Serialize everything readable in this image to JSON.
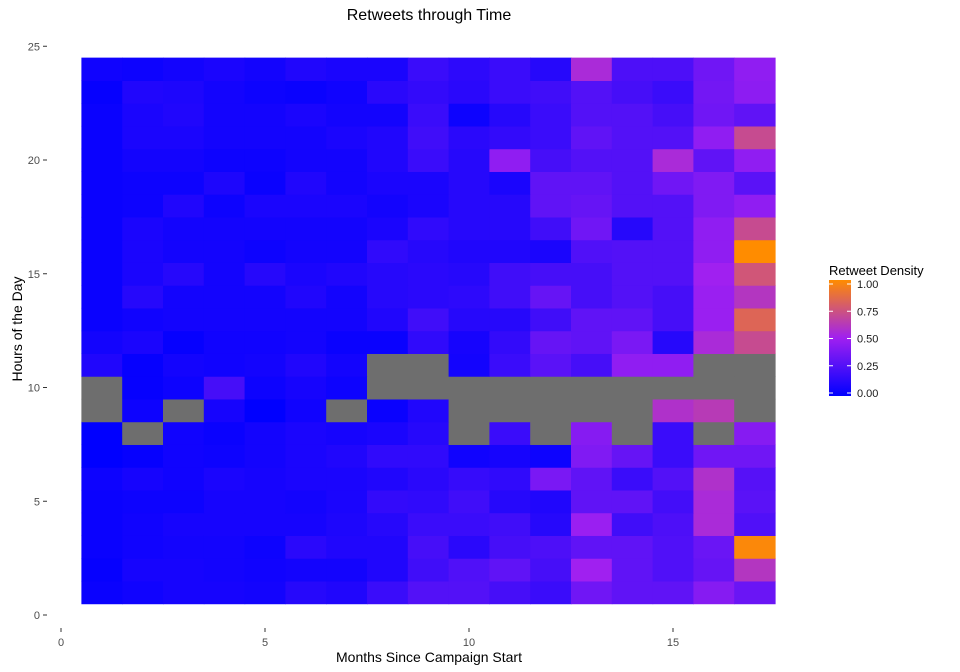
{
  "chart_data": {
    "type": "heatmap",
    "title": "Retweets through Time",
    "xlabel": "Months Since Campaign Start",
    "ylabel": "Hours of the Day",
    "xlim": [
      0,
      17.5
    ],
    "ylim": [
      0,
      25
    ],
    "x_ticks": [
      0,
      5,
      10,
      15
    ],
    "y_ticks": [
      0,
      5,
      10,
      15,
      20,
      25
    ],
    "x": [
      1,
      2,
      3,
      4,
      5,
      6,
      7,
      8,
      9,
      10,
      11,
      12,
      13,
      14,
      15,
      16,
      17
    ],
    "y": [
      1,
      2,
      3,
      4,
      5,
      6,
      7,
      8,
      9,
      10,
      11,
      12,
      13,
      14,
      15,
      16,
      17,
      18,
      19,
      20,
      21,
      22,
      23,
      24
    ],
    "color_scale": {
      "low": "#0000ff",
      "mid": "#a020f0",
      "high": "#ff8c00",
      "na": "#6e6e6e",
      "domain": [
        0,
        1
      ]
    },
    "missing_value_color": "#6e6e6e",
    "legend": {
      "title": "Retweet Density",
      "labels": [
        "0.00",
        "0.25",
        "0.50",
        "0.75",
        "1.00"
      ],
      "values": [
        0,
        0.25,
        0.5,
        0.75,
        1.0
      ],
      "placement": "right"
    },
    "grid": false,
    "values": [
      [
        0.03,
        0.05,
        0.07,
        0.07,
        0.06,
        0.12,
        0.1,
        0.18,
        0.26,
        0.26,
        0.22,
        0.18,
        0.35,
        0.3,
        0.3,
        0.42,
        0.33
      ],
      [
        0.02,
        0.07,
        0.07,
        0.06,
        0.05,
        0.06,
        0.06,
        0.1,
        0.2,
        0.25,
        0.3,
        0.22,
        0.5,
        0.3,
        0.25,
        0.32,
        0.6
      ],
      [
        0.03,
        0.05,
        0.06,
        0.06,
        0.04,
        0.13,
        0.1,
        0.1,
        0.22,
        0.13,
        0.22,
        0.24,
        0.3,
        0.3,
        0.25,
        0.33,
        0.98
      ],
      [
        0.03,
        0.05,
        0.07,
        0.07,
        0.07,
        0.07,
        0.09,
        0.12,
        0.18,
        0.18,
        0.2,
        0.12,
        0.48,
        0.2,
        0.24,
        0.55,
        0.25
      ],
      [
        0.03,
        0.04,
        0.04,
        0.07,
        0.07,
        0.06,
        0.08,
        0.16,
        0.15,
        0.2,
        0.12,
        0.1,
        0.3,
        0.3,
        0.21,
        0.55,
        0.28
      ],
      [
        0.04,
        0.07,
        0.05,
        0.08,
        0.07,
        0.08,
        0.08,
        0.1,
        0.13,
        0.17,
        0.15,
        0.38,
        0.3,
        0.18,
        0.26,
        0.58,
        0.27
      ],
      [
        0.0,
        0.02,
        0.05,
        0.04,
        0.06,
        0.08,
        0.1,
        0.15,
        0.15,
        0.05,
        0.07,
        0.04,
        0.4,
        0.32,
        0.18,
        0.35,
        0.35
      ],
      [
        0.0,
        null,
        0.05,
        0.03,
        0.06,
        0.08,
        0.07,
        0.08,
        0.12,
        null,
        0.18,
        null,
        0.42,
        null,
        0.18,
        null,
        0.42
      ],
      [
        null,
        0.04,
        null,
        0.07,
        0.0,
        0.05,
        null,
        0.03,
        0.1,
        null,
        null,
        null,
        null,
        null,
        0.58,
        0.62,
        null
      ],
      [
        null,
        0.02,
        0.04,
        0.22,
        0.04,
        0.07,
        0.04,
        null,
        null,
        null,
        null,
        null,
        null,
        null,
        null,
        null,
        null
      ],
      [
        0.1,
        0.02,
        0.06,
        0.05,
        0.06,
        0.1,
        0.06,
        null,
        null,
        0.06,
        0.18,
        0.28,
        0.22,
        0.45,
        0.45,
        null,
        null
      ],
      [
        0.06,
        0.08,
        0.02,
        0.05,
        0.05,
        0.06,
        0.03,
        0.03,
        0.15,
        0.07,
        0.16,
        0.32,
        0.3,
        0.38,
        0.12,
        0.55,
        0.7
      ],
      [
        0.03,
        0.05,
        0.06,
        0.06,
        0.06,
        0.06,
        0.06,
        0.1,
        0.2,
        0.12,
        0.12,
        0.2,
        0.3,
        0.3,
        0.22,
        0.48,
        0.82
      ],
      [
        0.03,
        0.12,
        0.06,
        0.06,
        0.06,
        0.1,
        0.06,
        0.12,
        0.13,
        0.14,
        0.2,
        0.32,
        0.22,
        0.26,
        0.22,
        0.48,
        0.6
      ],
      [
        0.03,
        0.08,
        0.12,
        0.06,
        0.12,
        0.08,
        0.1,
        0.12,
        0.13,
        0.12,
        0.2,
        0.22,
        0.22,
        0.26,
        0.26,
        0.5,
        0.75
      ],
      [
        0.03,
        0.08,
        0.06,
        0.06,
        0.04,
        0.06,
        0.06,
        0.15,
        0.12,
        0.1,
        0.1,
        0.08,
        0.25,
        0.26,
        0.26,
        0.45,
        1.0
      ],
      [
        0.03,
        0.08,
        0.06,
        0.06,
        0.06,
        0.06,
        0.06,
        0.08,
        0.15,
        0.12,
        0.12,
        0.2,
        0.35,
        0.12,
        0.26,
        0.45,
        0.7
      ],
      [
        0.03,
        0.04,
        0.1,
        0.04,
        0.08,
        0.08,
        0.08,
        0.06,
        0.08,
        0.12,
        0.12,
        0.3,
        0.32,
        0.26,
        0.26,
        0.4,
        0.45
      ],
      [
        0.03,
        0.04,
        0.04,
        0.09,
        0.03,
        0.1,
        0.06,
        0.08,
        0.08,
        0.12,
        0.08,
        0.3,
        0.3,
        0.26,
        0.35,
        0.4,
        0.28
      ],
      [
        0.03,
        0.06,
        0.06,
        0.04,
        0.04,
        0.06,
        0.06,
        0.1,
        0.18,
        0.12,
        0.45,
        0.22,
        0.26,
        0.26,
        0.55,
        0.3,
        0.45
      ],
      [
        0.03,
        0.08,
        0.08,
        0.06,
        0.06,
        0.06,
        0.08,
        0.1,
        0.2,
        0.13,
        0.16,
        0.18,
        0.3,
        0.26,
        0.26,
        0.45,
        0.7
      ],
      [
        0.03,
        0.08,
        0.1,
        0.06,
        0.06,
        0.08,
        0.06,
        0.06,
        0.18,
        0.04,
        0.12,
        0.18,
        0.26,
        0.26,
        0.22,
        0.35,
        0.3
      ],
      [
        0.02,
        0.1,
        0.09,
        0.06,
        0.04,
        0.03,
        0.05,
        0.13,
        0.16,
        0.13,
        0.18,
        0.2,
        0.26,
        0.22,
        0.18,
        0.36,
        0.44
      ],
      [
        0.05,
        0.04,
        0.06,
        0.08,
        0.06,
        0.1,
        0.08,
        0.08,
        0.18,
        0.14,
        0.18,
        0.12,
        0.55,
        0.24,
        0.24,
        0.35,
        0.45
      ]
    ]
  }
}
